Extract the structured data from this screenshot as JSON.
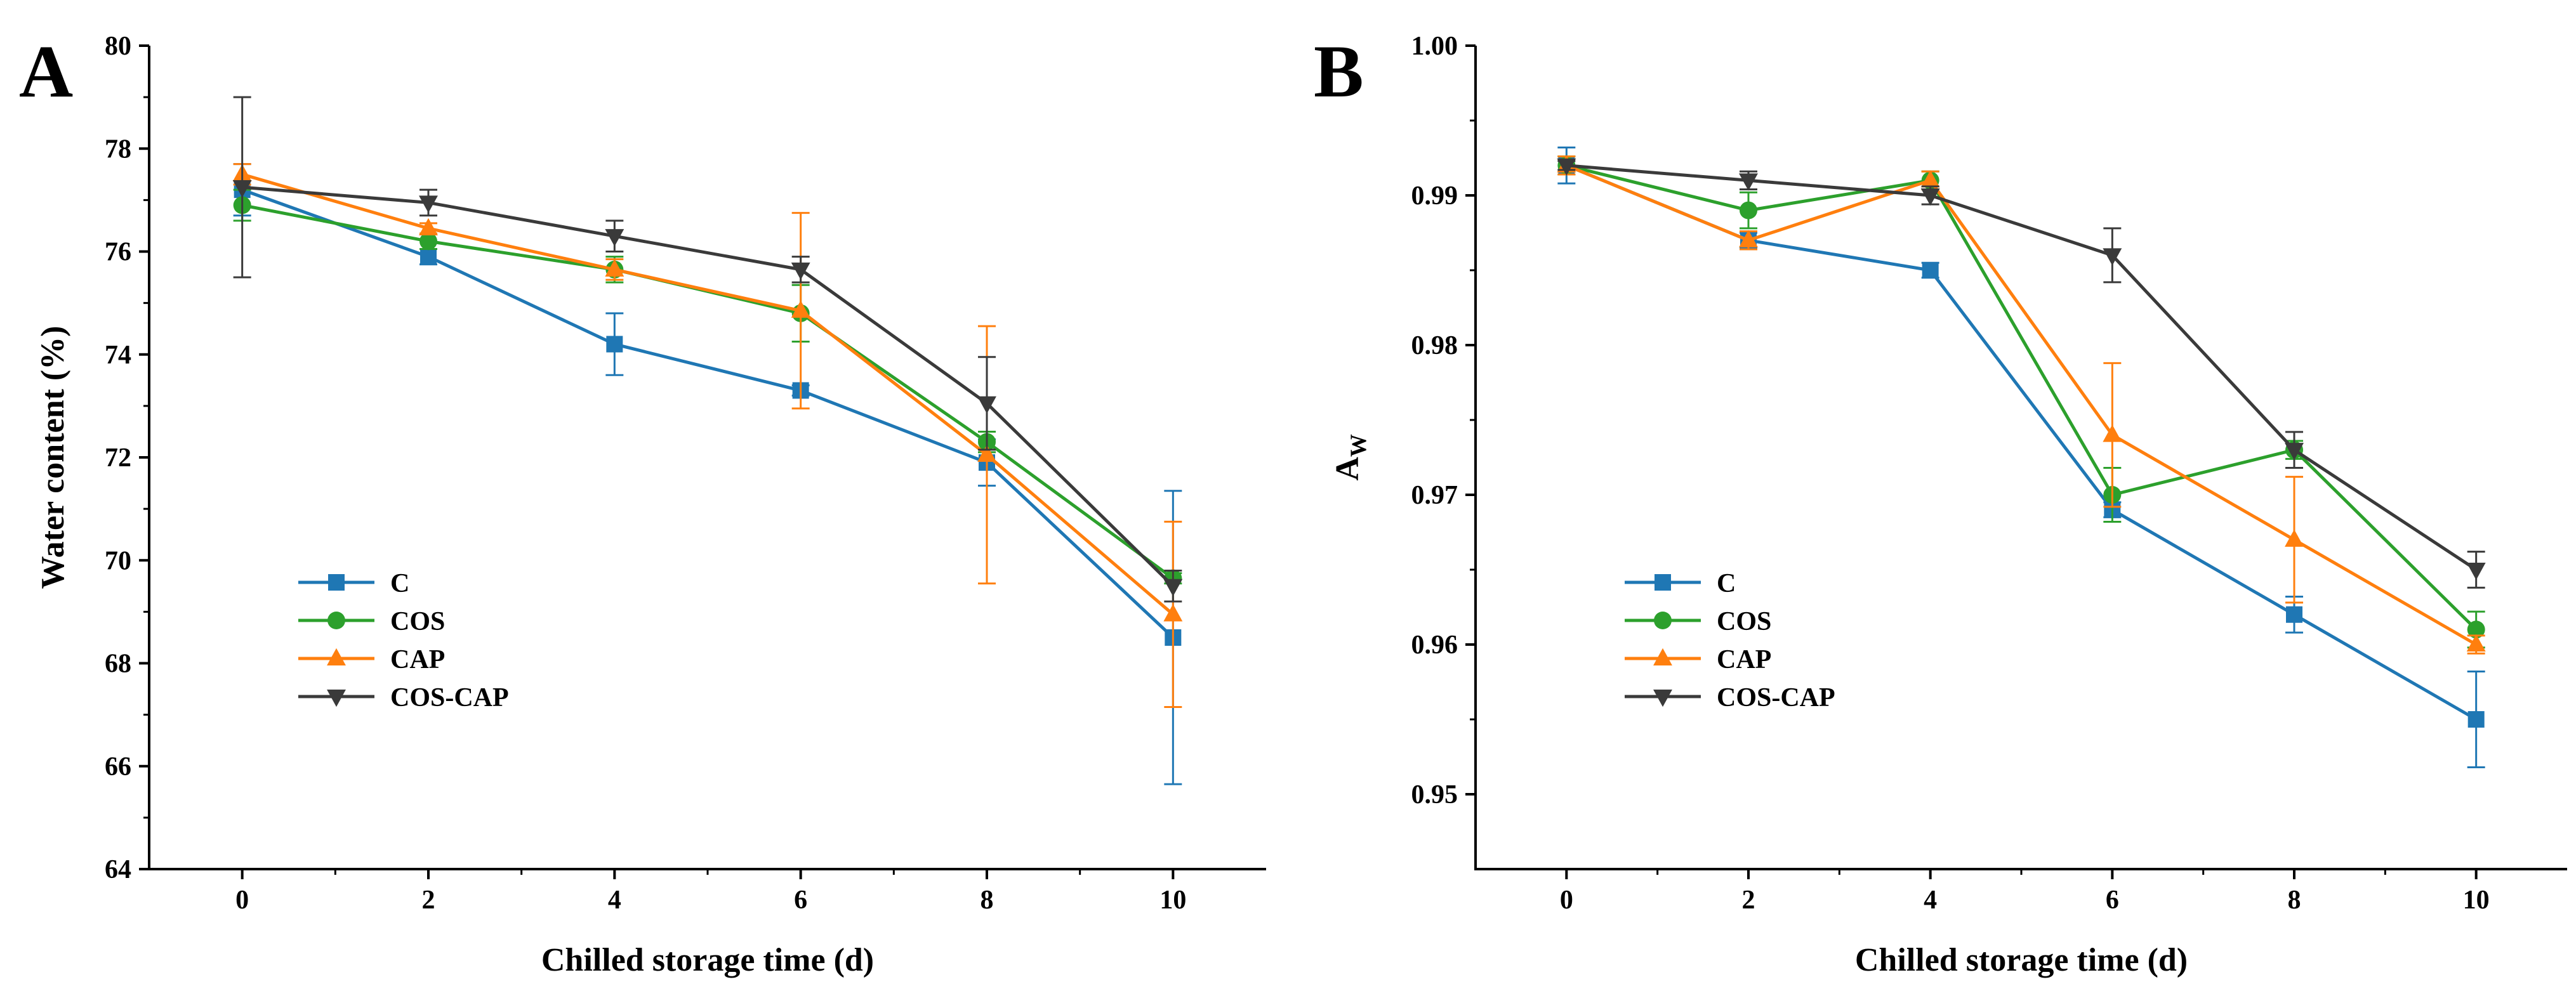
{
  "chart_data": [
    {
      "type": "line",
      "panel_label": "A",
      "title": "",
      "xlabel": "Chilled storage time (d)",
      "ylabel": "Water content (%)",
      "ylabel_sub": "",
      "x": [
        0,
        2,
        4,
        6,
        8,
        10
      ],
      "xlim": [
        -1,
        11
      ],
      "xticks": [
        0,
        2,
        4,
        6,
        8,
        10
      ],
      "ylim": [
        64,
        80
      ],
      "yticks": [
        64,
        66,
        68,
        70,
        72,
        74,
        76,
        78,
        80
      ],
      "ytick_decimals": 0,
      "grid": false,
      "legend_position": "bottom-left",
      "series": [
        {
          "name": "C",
          "color": "#1f77b4",
          "marker": "square",
          "values": [
            77.2,
            75.9,
            74.2,
            73.3,
            71.9,
            68.5
          ],
          "errors": [
            0.5,
            0.15,
            0.6,
            0.1,
            0.45,
            2.85
          ]
        },
        {
          "name": "COS",
          "color": "#2ca02c",
          "marker": "circle",
          "values": [
            76.9,
            76.2,
            75.65,
            74.8,
            72.3,
            69.65
          ],
          "errors": [
            0.3,
            0.15,
            0.25,
            0.55,
            0.2,
            0.1
          ]
        },
        {
          "name": "CAP",
          "color": "#ff7f0e",
          "marker": "triangle-up",
          "values": [
            77.5,
            76.45,
            75.65,
            74.85,
            72.05,
            68.95
          ],
          "errors": [
            0.2,
            0.1,
            0.2,
            1.9,
            2.5,
            1.8
          ]
        },
        {
          "name": "COS-CAP",
          "color": "#3a3a3a",
          "marker": "triangle-down",
          "values": [
            77.25,
            76.95,
            76.3,
            75.65,
            73.05,
            69.5
          ],
          "errors": [
            1.75,
            0.25,
            0.3,
            0.25,
            0.9,
            0.3
          ]
        }
      ]
    },
    {
      "type": "line",
      "panel_label": "B",
      "title": "",
      "xlabel": "Chilled storage time (d)",
      "ylabel": "A",
      "ylabel_sub": "W",
      "x": [
        0,
        2,
        4,
        6,
        8,
        10
      ],
      "xlim": [
        -1,
        11
      ],
      "xticks": [
        0,
        2,
        4,
        6,
        8,
        10
      ],
      "ylim": [
        0.945,
        1.0
      ],
      "yticks": [
        0.95,
        0.96,
        0.97,
        0.98,
        0.99,
        1.0
      ],
      "ytick_decimals": 2,
      "grid": false,
      "legend_position": "bottom-left",
      "series": [
        {
          "name": "C",
          "color": "#1f77b4",
          "marker": "square",
          "values": [
            0.992,
            0.987,
            0.985,
            0.969,
            0.962,
            0.955
          ],
          "errors": [
            0.0012,
            0.0005,
            0.0005,
            0.0005,
            0.0012,
            0.0032
          ]
        },
        {
          "name": "COS",
          "color": "#2ca02c",
          "marker": "circle",
          "values": [
            0.992,
            0.989,
            0.991,
            0.97,
            0.973,
            0.961
          ],
          "errors": [
            0.0006,
            0.0012,
            0.0006,
            0.0018,
            0.0006,
            0.0012
          ]
        },
        {
          "name": "CAP",
          "color": "#ff7f0e",
          "marker": "triangle-up",
          "values": [
            0.992,
            0.987,
            0.991,
            0.974,
            0.967,
            0.96
          ],
          "errors": [
            0.0006,
            0.0006,
            0.0006,
            0.0048,
            0.0042,
            0.0006
          ]
        },
        {
          "name": "COS-CAP",
          "color": "#3a3a3a",
          "marker": "triangle-down",
          "values": [
            0.992,
            0.991,
            0.99,
            0.986,
            0.973,
            0.965
          ],
          "errors": [
            0.0003,
            0.0006,
            0.0006,
            0.0018,
            0.0012,
            0.0012
          ]
        }
      ]
    }
  ]
}
